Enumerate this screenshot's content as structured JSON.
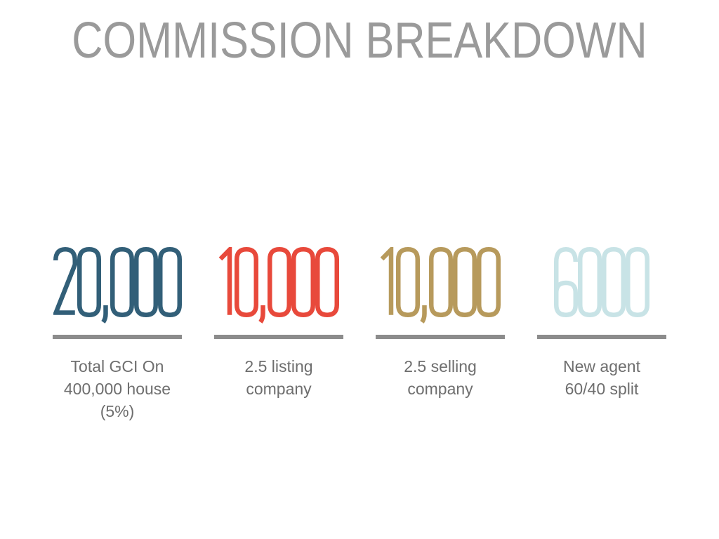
{
  "slide": {
    "title": "COMMISSION BREAKDOWN",
    "title_color": "#9A9A9A",
    "background_color": "#FFFFFF",
    "divider_color": "#8C8C8C",
    "label_color": "#6E6E6E"
  },
  "items": [
    {
      "value": "20,000",
      "label": "Total GCI On 400,000 house (5%)",
      "color": "#325F78"
    },
    {
      "value": "10,000",
      "label": "2.5 listing company",
      "color": "#E8493B"
    },
    {
      "value": "10,000",
      "label": "2.5 selling company",
      "color": "#B79A5C"
    },
    {
      "value": "6000",
      "label": "New agent 60/40 split",
      "color": "#C8E3E6"
    }
  ]
}
